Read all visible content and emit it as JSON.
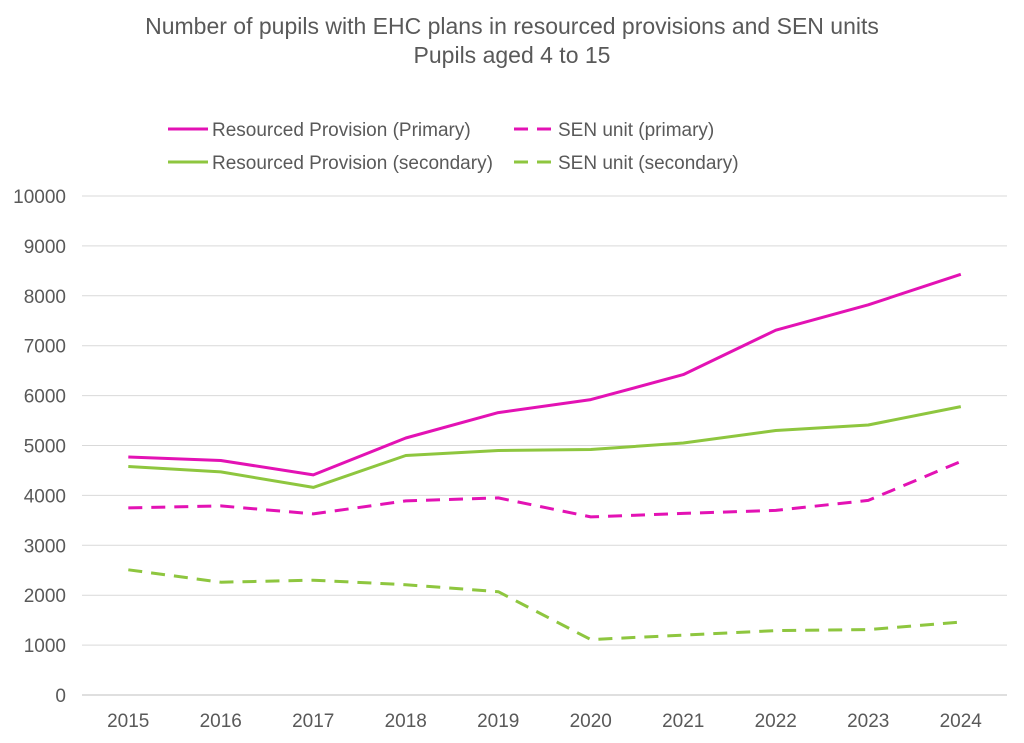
{
  "chart_data": {
    "type": "line",
    "title": "Number of pupils with EHC plans in resourced provisions and SEN units",
    "subtitle": "Pupils aged 4 to 15",
    "xlabel": "",
    "ylabel": "",
    "x": [
      "2015",
      "2016",
      "2017",
      "2018",
      "2019",
      "2020",
      "2021",
      "2022",
      "2023",
      "2024"
    ],
    "ylim": [
      0,
      10000
    ],
    "yticks": [
      0,
      1000,
      2000,
      3000,
      4000,
      5000,
      6000,
      7000,
      8000,
      9000,
      10000
    ],
    "grid": true,
    "legend_position": "top",
    "series": [
      {
        "name": "Resourced Provision (Primary)",
        "color": "#E312B4",
        "dash": "solid",
        "values": [
          4770,
          4700,
          4410,
          5150,
          5660,
          5920,
          6420,
          7310,
          7820,
          8430
        ]
      },
      {
        "name": "SEN unit (primary)",
        "color": "#E312B4",
        "dash": "dashed",
        "values": [
          3750,
          3790,
          3630,
          3890,
          3950,
          3570,
          3640,
          3700,
          3900,
          4680
        ]
      },
      {
        "name": "Resourced Provision (secondary)",
        "color": "#8EC63F",
        "dash": "solid",
        "values": [
          4580,
          4470,
          4160,
          4800,
          4900,
          4920,
          5050,
          5300,
          5410,
          5780
        ]
      },
      {
        "name": "SEN unit (secondary)",
        "color": "#8EC63F",
        "dash": "dashed",
        "values": [
          2510,
          2260,
          2300,
          2210,
          2070,
          1110,
          1200,
          1290,
          1310,
          1460
        ]
      }
    ]
  }
}
